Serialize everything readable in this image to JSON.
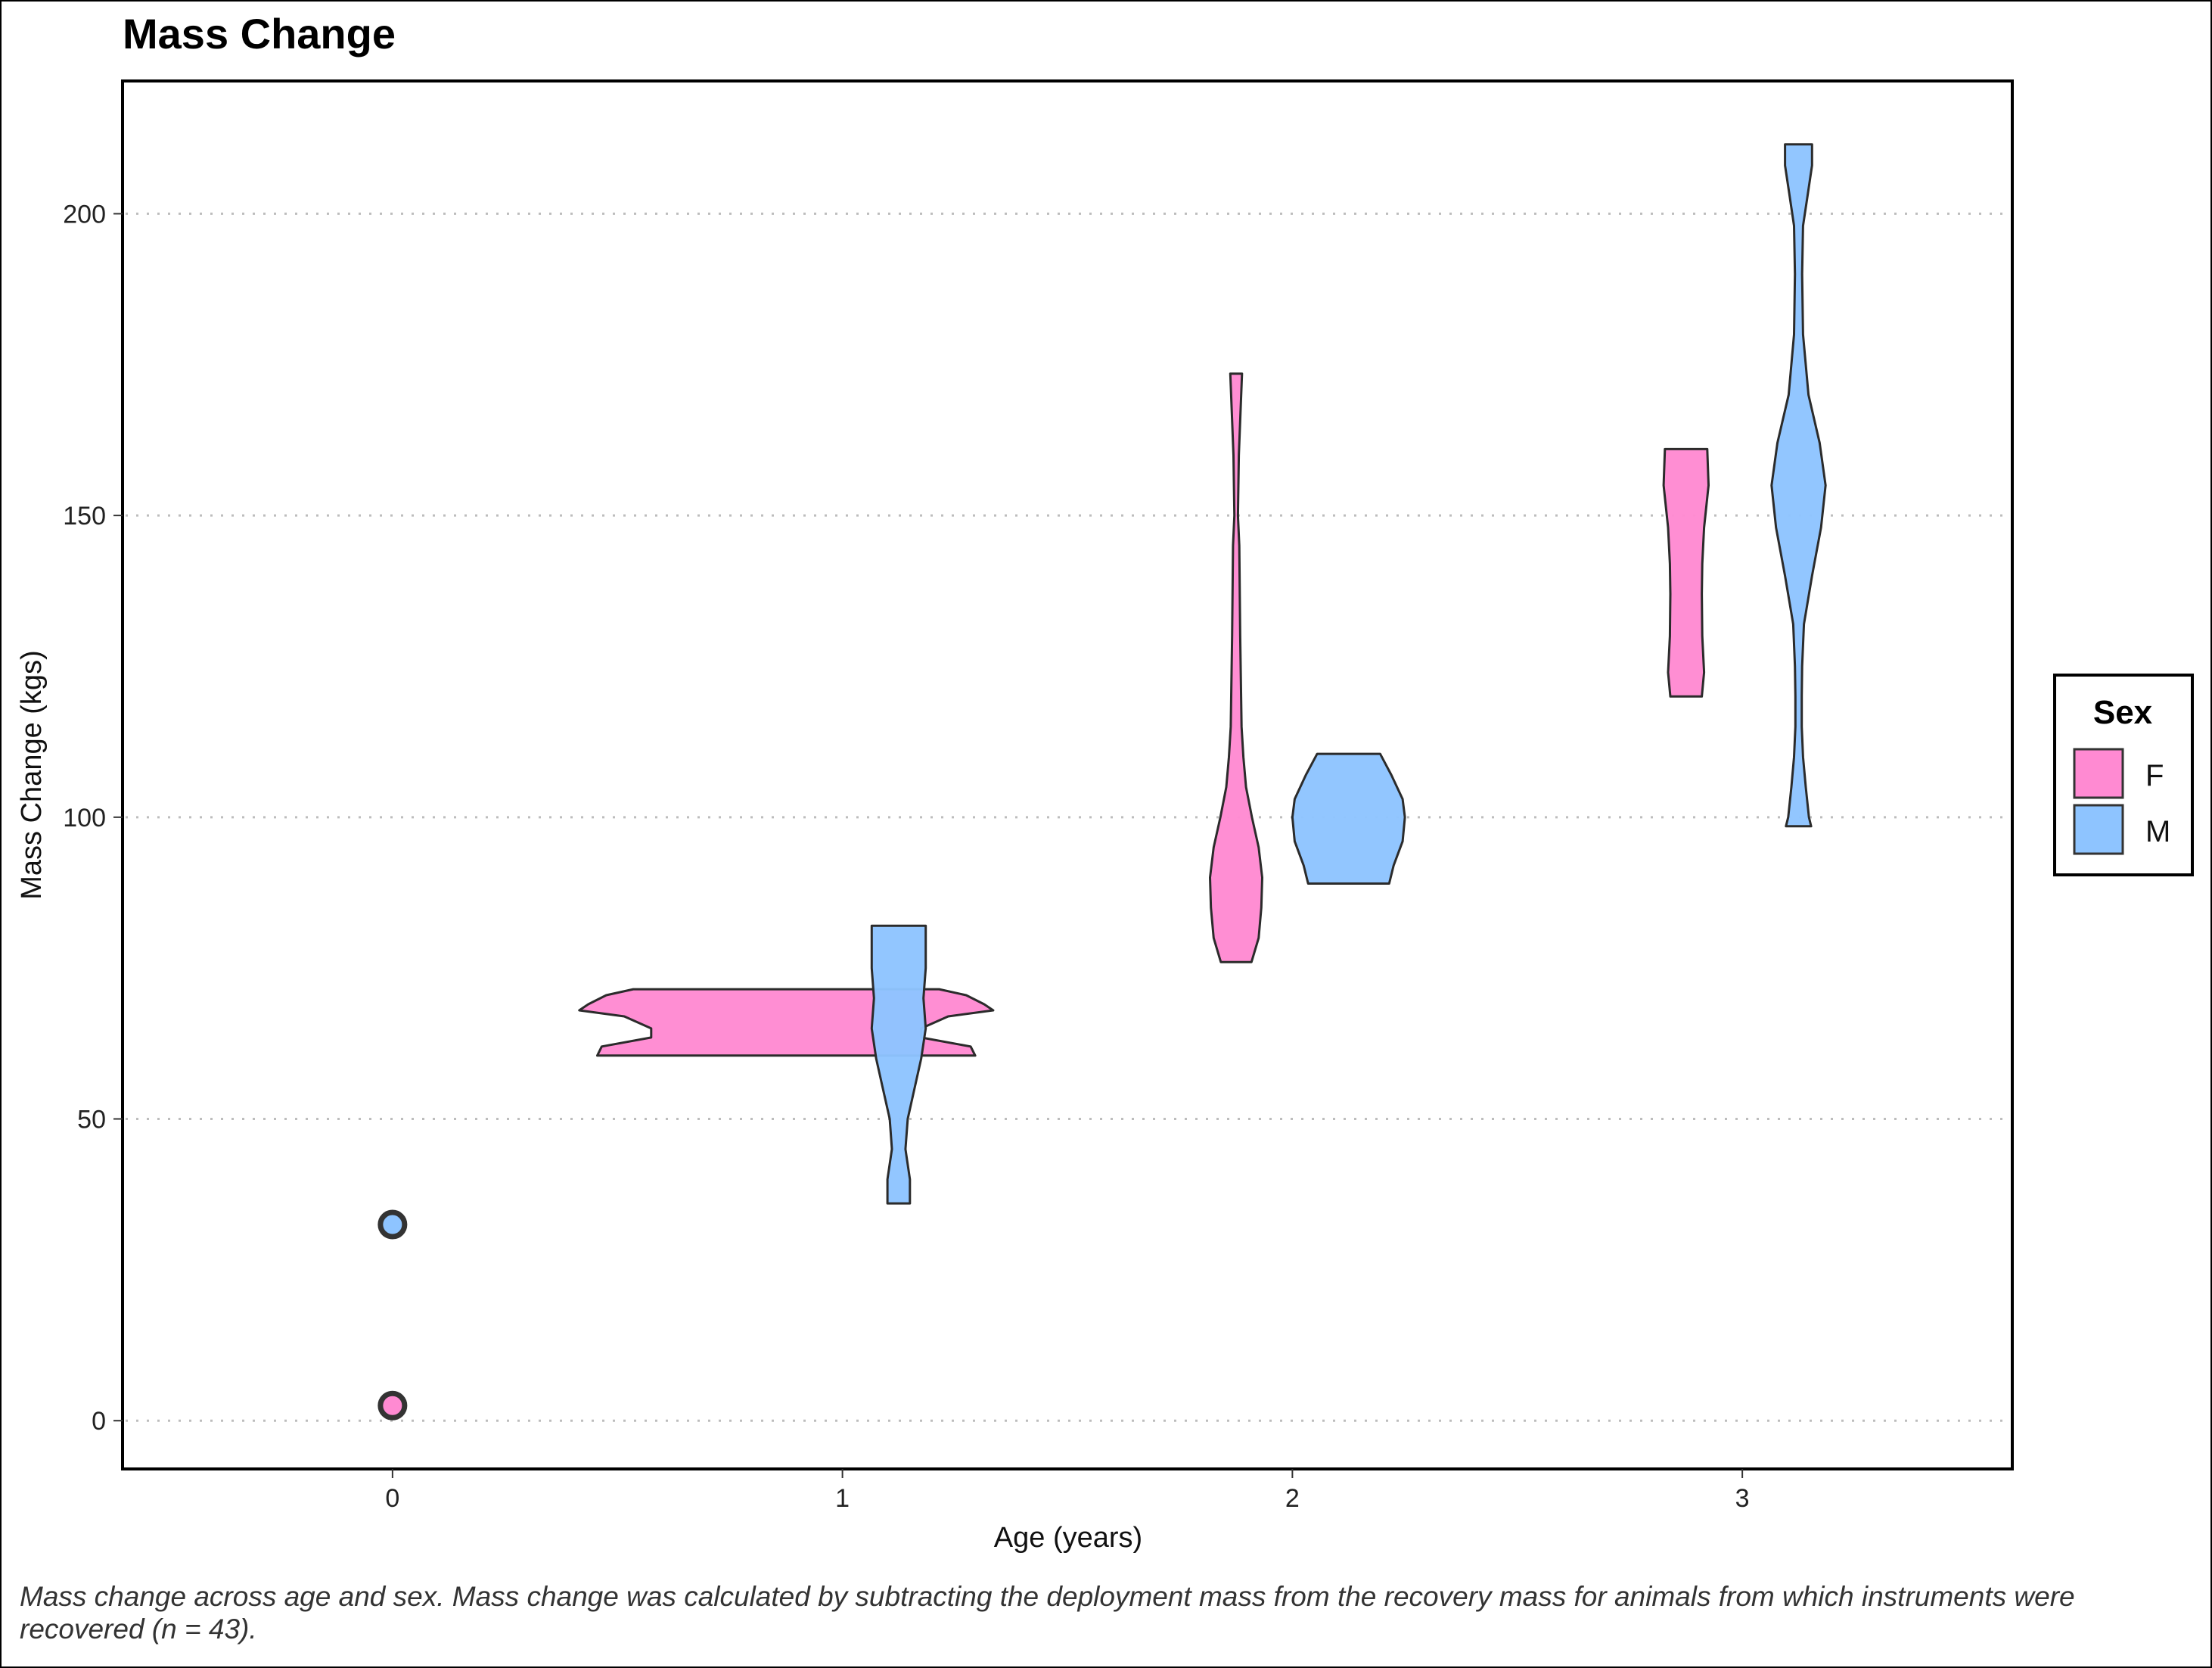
{
  "chart_data": {
    "type": "violin",
    "title": "Mass Change",
    "xlabel": "Age (years)",
    "ylabel": "Mass Change (kgs)",
    "xlim": [
      -0.6,
      3.6
    ],
    "ylim": [
      -8,
      222
    ],
    "x_ticks": [
      0,
      1,
      2,
      3
    ],
    "y_ticks": [
      0,
      50,
      100,
      150,
      200
    ],
    "grid": "horizontal dotted",
    "legend": {
      "title": "Sex",
      "position": "right",
      "entries": [
        "F",
        "M"
      ]
    },
    "colors": {
      "F": "#ff8ad2",
      "M": "#8ec4ff"
    },
    "series": [
      {
        "name": "F",
        "color": "#ff8ad2",
        "groups": [
          {
            "age": 0,
            "points": [
              2.5
            ]
          },
          {
            "age": 1,
            "profile": [
              [
                60.5,
                0.42
              ],
              [
                62,
                0.41
              ],
              [
                63.5,
                0.3
              ],
              [
                65,
                0.3
              ],
              [
                67,
                0.36
              ],
              [
                68,
                0.46
              ],
              [
                69,
                0.44
              ],
              [
                70.5,
                0.4
              ],
              [
                71.5,
                0.34
              ]
            ]
          },
          {
            "age": 2,
            "profile": [
              [
                76,
                0.034
              ],
              [
                80,
                0.05
              ],
              [
                85,
                0.056
              ],
              [
                90,
                0.058
              ],
              [
                95,
                0.05
              ],
              [
                100,
                0.035
              ],
              [
                105,
                0.022
              ],
              [
                110,
                0.016
              ],
              [
                115,
                0.012
              ],
              [
                130,
                0.009
              ],
              [
                145,
                0.007
              ],
              [
                150,
                0.004
              ],
              [
                160,
                0.006
              ],
              [
                173.5,
                0.013
              ]
            ]
          },
          {
            "age": 3,
            "profile": [
              [
                120,
                0.035
              ],
              [
                124,
                0.04
              ],
              [
                130,
                0.036
              ],
              [
                137,
                0.035
              ],
              [
                142,
                0.036
              ],
              [
                148,
                0.04
              ],
              [
                155,
                0.05
              ],
              [
                161,
                0.047
              ]
            ]
          }
        ]
      },
      {
        "name": "M",
        "color": "#8ec4ff",
        "groups": [
          {
            "age": 0,
            "points": [
              32.5
            ]
          },
          {
            "age": 1,
            "profile": [
              [
                36,
                0.025
              ],
              [
                40,
                0.025
              ],
              [
                45,
                0.015
              ],
              [
                50,
                0.02
              ],
              [
                55,
                0.035
              ],
              [
                60,
                0.05
              ],
              [
                65,
                0.06
              ],
              [
                70,
                0.055
              ],
              [
                75,
                0.06
              ],
              [
                82,
                0.06
              ]
            ]
          },
          {
            "age": 2,
            "profile": [
              [
                89,
                0.09
              ],
              [
                92,
                0.1
              ],
              [
                96,
                0.12
              ],
              [
                100,
                0.125
              ],
              [
                103,
                0.12
              ],
              [
                107,
                0.095
              ],
              [
                110.5,
                0.07
              ]
            ]
          },
          {
            "age": 3,
            "profile": [
              [
                98.5,
                0.028
              ],
              [
                100,
                0.023
              ],
              [
                105,
                0.016
              ],
              [
                110,
                0.01
              ],
              [
                115,
                0.007
              ],
              [
                120,
                0.007
              ],
              [
                125,
                0.008
              ],
              [
                132,
                0.012
              ],
              [
                140,
                0.03
              ],
              [
                148,
                0.05
              ],
              [
                155,
                0.06
              ],
              [
                162,
                0.047
              ],
              [
                170,
                0.022
              ],
              [
                180,
                0.01
              ],
              [
                190,
                0.008
              ],
              [
                198,
                0.01
              ],
              [
                203,
                0.02
              ],
              [
                208,
                0.03
              ],
              [
                211.5,
                0.03
              ]
            ]
          }
        ]
      }
    ],
    "caption": "Mass change across age and sex. Mass change was calculated by subtracting the deployment mass from the recovery mass for animals from which instruments were recovered (n = 43)."
  }
}
